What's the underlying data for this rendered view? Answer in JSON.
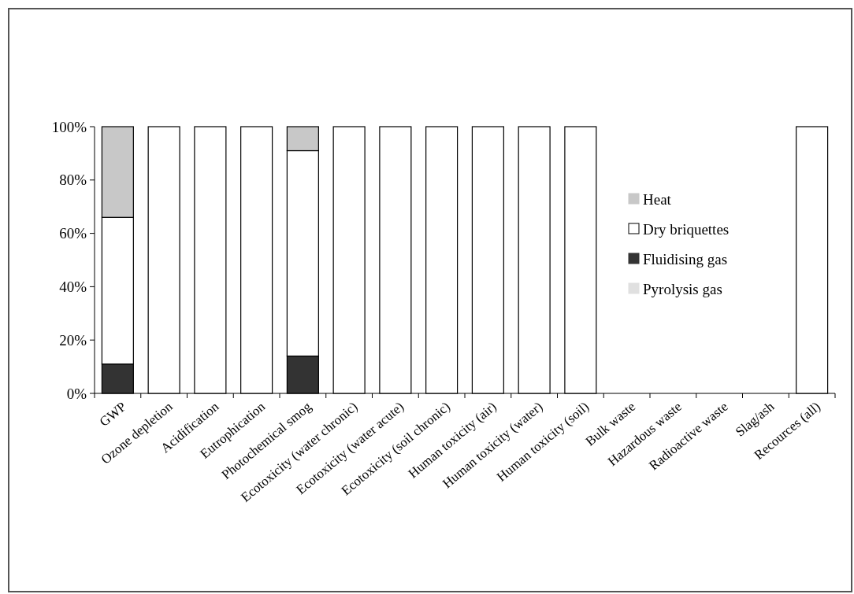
{
  "chart_data": {
    "type": "bar",
    "stacked": true,
    "categories": [
      "GWP",
      "Ozone depletion",
      "Acidification",
      "Eutrophication",
      "Photochemical smog",
      "Ecotoxicity (water chronic)",
      "Ecotoxicity (water acute)",
      "Ecotoxicity (soil chronic)",
      "Human toxicity (air)",
      "Human toxicity (water)",
      "Human toxicity (soil)",
      "Bulk waste",
      "Hazardous waste",
      "Radioactive waste",
      "Slag/ash",
      "Recources (all)"
    ],
    "series": [
      {
        "name": "Pyrolysis gas",
        "color": "#e0e0e0",
        "values": [
          0,
          0,
          0,
          0,
          0,
          0,
          0,
          0,
          0,
          0,
          0,
          0,
          0,
          0,
          0,
          0
        ]
      },
      {
        "name": "Fluidising gas",
        "color": "#333333",
        "values": [
          11,
          0,
          0,
          0,
          14,
          0,
          0,
          0,
          0,
          0,
          0,
          0,
          0,
          0,
          0,
          0
        ]
      },
      {
        "name": "Dry briquettes",
        "color": "#ffffff",
        "values": [
          55,
          100,
          100,
          100,
          77,
          100,
          100,
          100,
          100,
          100,
          100,
          0,
          0,
          0,
          0,
          100
        ]
      },
      {
        "name": "Heat",
        "color": "#c8c8c8",
        "values": [
          34,
          0,
          0,
          0,
          9,
          0,
          0,
          0,
          0,
          0,
          0,
          0,
          0,
          0,
          0,
          0
        ]
      }
    ],
    "ylim": [
      0,
      100
    ],
    "yticks": [
      {
        "value": 0,
        "label": "0%"
      },
      {
        "value": 20,
        "label": "20%"
      },
      {
        "value": 40,
        "label": "40%"
      },
      {
        "value": 60,
        "label": "60%"
      },
      {
        "value": 80,
        "label": "80%"
      },
      {
        "value": 100,
        "label": "100%"
      }
    ],
    "legend": "right"
  }
}
